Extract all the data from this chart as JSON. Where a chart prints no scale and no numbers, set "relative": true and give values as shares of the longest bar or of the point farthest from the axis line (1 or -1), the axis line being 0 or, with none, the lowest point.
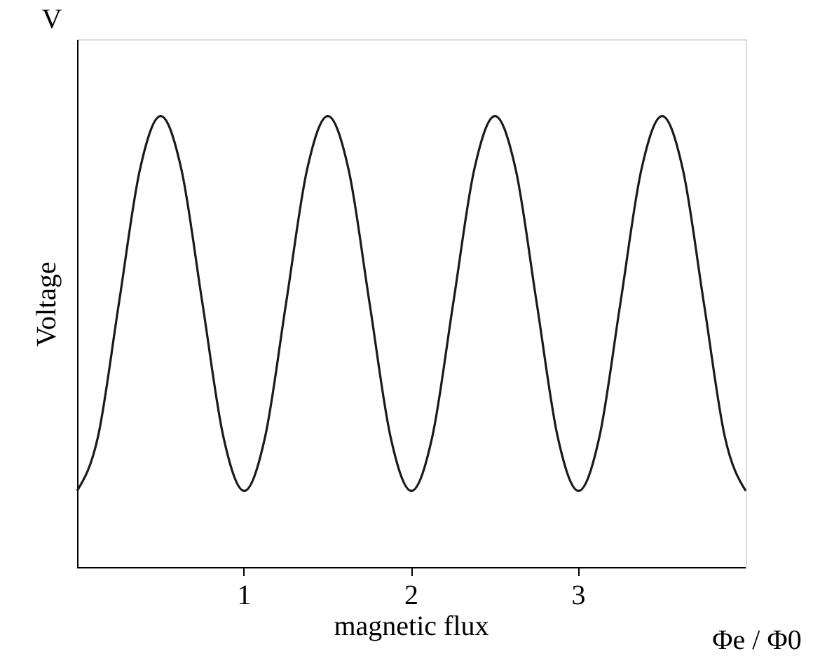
{
  "chart_data": {
    "type": "line",
    "relative": true,
    "xlabel": "magnetic flux",
    "ylabel": "Voltage",
    "annotations": [
      "V",
      "Φe / Φ0"
    ],
    "x": [
      0,
      0.125,
      0.25,
      0.375,
      0.5,
      0.625,
      0.75,
      0.875,
      1,
      1.125,
      1.25,
      1.375,
      1.5,
      1.625,
      1.75,
      1.875,
      2,
      2.125,
      2.25,
      2.375,
      2.5,
      2.625,
      2.75,
      2.875,
      3,
      3.125,
      3.25,
      3.375,
      3.5,
      3.625,
      3.75,
      3.875,
      4
    ],
    "series": [
      {
        "color": "#1a1a1a",
        "values": [
          0.17,
          0.29,
          0.585,
          0.88,
          1.0,
          0.88,
          0.585,
          0.29,
          0.17,
          0.29,
          0.585,
          0.88,
          1.0,
          0.88,
          0.585,
          0.29,
          0.17,
          0.29,
          0.585,
          0.88,
          1.0,
          0.88,
          0.585,
          0.29,
          0.17,
          0.29,
          0.585,
          0.88,
          1.0,
          0.88,
          0.585,
          0.29,
          0.17
        ]
      }
    ],
    "xlim": [
      0,
      4
    ],
    "xticks": [
      1,
      2,
      3
    ],
    "grid": false,
    "legend": false,
    "marker": "none",
    "line_style": "solid"
  }
}
